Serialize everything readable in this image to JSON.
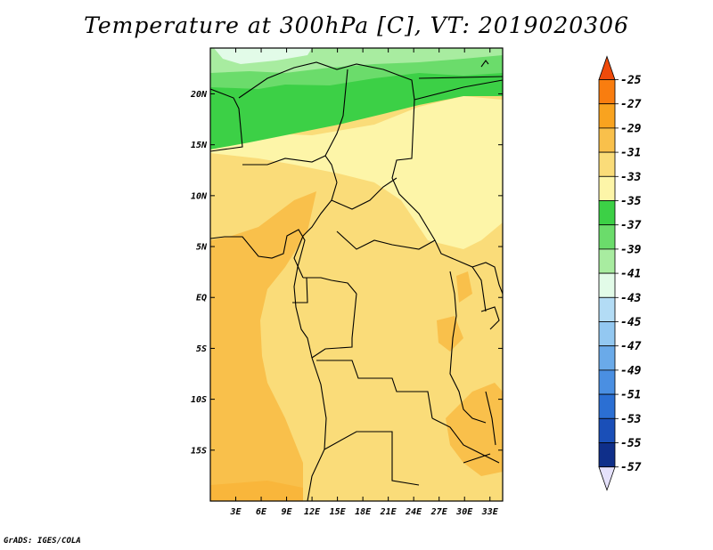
{
  "title": "Temperature at 300hPa [C], VT: 2019020306",
  "footer": "GrADS: IGES/COLA",
  "map": {
    "lon_range": [
      0,
      34.5
    ],
    "lat_range": [
      -20,
      24.5
    ],
    "lat_ticks": [
      {
        "value": 20,
        "label": "20N"
      },
      {
        "value": 15,
        "label": "15N"
      },
      {
        "value": 10,
        "label": "10N"
      },
      {
        "value": 5,
        "label": "5N"
      },
      {
        "value": 0,
        "label": "EQ"
      },
      {
        "value": -5,
        "label": "5S"
      },
      {
        "value": -10,
        "label": "10S"
      },
      {
        "value": -15,
        "label": "15S"
      }
    ],
    "lon_ticks": [
      {
        "value": 3,
        "label": "3E"
      },
      {
        "value": 6,
        "label": "6E"
      },
      {
        "value": 9,
        "label": "9E"
      },
      {
        "value": 12,
        "label": "12E"
      },
      {
        "value": 15,
        "label": "15E"
      },
      {
        "value": 18,
        "label": "18E"
      },
      {
        "value": 21,
        "label": "21E"
      },
      {
        "value": 24,
        "label": "24E"
      },
      {
        "value": 27,
        "label": "27E"
      },
      {
        "value": 30,
        "label": "30E"
      },
      {
        "value": 33,
        "label": "33E"
      }
    ]
  },
  "colorbar": {
    "labels": [
      "-25",
      "-27",
      "-29",
      "-31",
      "-33",
      "-35",
      "-37",
      "-39",
      "-41",
      "-43",
      "-45",
      "-47",
      "-49",
      "-51",
      "-53",
      "-55",
      "-57"
    ],
    "colors_top_to_bottom": [
      "#f04a0a",
      "#f97d0f",
      "#f9a31f",
      "#f9c04b",
      "#fadc79",
      "#fdf5a8",
      "#3cd046",
      "#6bdc6b",
      "#a8eca0",
      "#e2fbe8",
      "#b3dcf5",
      "#93c8f1",
      "#6aaae9",
      "#4a8fe2",
      "#2b6fd3",
      "#1a4fb8",
      "#0f2f8a",
      "#08185f",
      "#e5e1fb"
    ]
  }
}
